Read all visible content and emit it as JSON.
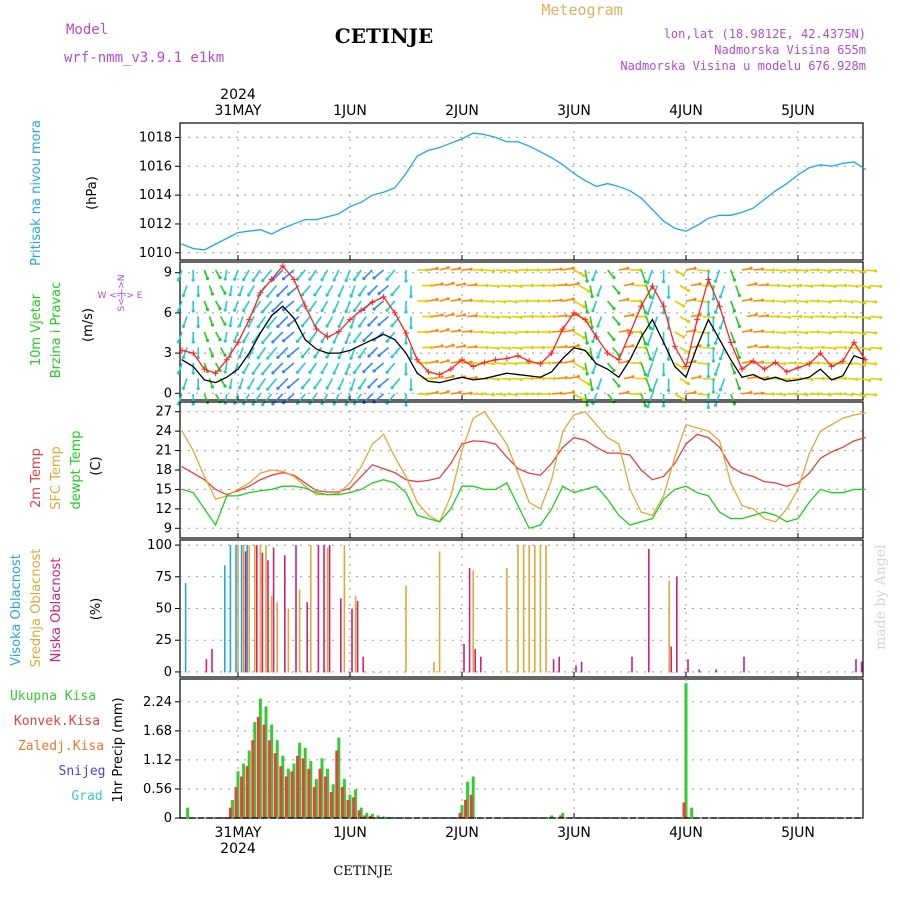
{
  "header": {
    "model_label": "Model",
    "model_name": "wrf-nmm_v3.9.1  e1km",
    "title": "CETINJE",
    "meteogram_label": "Meteogram",
    "lonlat": "lon,lat (18.9812E, 42.4375N)",
    "elevation": "Nadmorska Visina 655m",
    "model_elevation": "Nadmorska Visina u modelu 676.928m",
    "footer_title": "CETINJE",
    "credit": "made by Angel",
    "year_top": "2024",
    "year_bottom": "2024"
  },
  "colors": {
    "pressure": "#22a7e6",
    "temp2m": "#e84040",
    "sfc_temp": "#e0a838",
    "dewpoint": "#22cc22",
    "high_cloud": "#22a7e6",
    "mid_cloud": "#e0a838",
    "low_cloud": "#cc2277",
    "total_precip": "#33cc33",
    "conv_precip": "#e84040",
    "frozen_precip": "#ee7733",
    "snow": "#4444dd",
    "graupel": "#33cccc",
    "wind_speed": "#000000",
    "wind_gust": "#ff2222",
    "labels_purple": "#b04dd0"
  },
  "chart_data": [
    {
      "type": "line",
      "panel": "pressure",
      "ylabel_colored": "Pritisak na nivou mora",
      "unit": "(hPa)",
      "ylim": [
        1009.5,
        1019
      ],
      "yticks": [
        1010,
        1012,
        1014,
        1016,
        1018
      ],
      "x": [
        0,
        0.1,
        0.2,
        0.3,
        0.4,
        0.5,
        0.6,
        0.7,
        0.8,
        0.9,
        1.0,
        1.1,
        1.2,
        1.3,
        1.4,
        1.5,
        1.6,
        1.7,
        1.8,
        1.9,
        2.0,
        2.1,
        2.2,
        2.3,
        2.4,
        2.5,
        2.6,
        2.7,
        2.8,
        2.9,
        3.0,
        3.1,
        3.2,
        3.3,
        3.4,
        3.5,
        3.6,
        3.7,
        3.8,
        3.9,
        4.0,
        4.1,
        4.2,
        4.3,
        4.4,
        4.5,
        4.6,
        4.7,
        4.8,
        4.9,
        5.0,
        5.1,
        5.2,
        5.3,
        5.4,
        5.5,
        5.6,
        5.7,
        5.8,
        5.9,
        6.0,
        6.1
      ],
      "series": [
        {
          "key": "pressure",
          "values": [
            1010.6,
            1010.3,
            1010.2,
            1010.6,
            1011.0,
            1011.4,
            1011.5,
            1011.6,
            1011.3,
            1011.7,
            1012.0,
            1012.3,
            1012.3,
            1012.5,
            1012.7,
            1013.2,
            1013.5,
            1014.0,
            1014.2,
            1014.5,
            1015.5,
            1016.7,
            1017.1,
            1017.3,
            1017.6,
            1017.9,
            1018.3,
            1018.2,
            1018.0,
            1017.7,
            1017.7,
            1017.4,
            1017.0,
            1016.6,
            1016.1,
            1015.5,
            1015.0,
            1014.6,
            1014.8,
            1014.6,
            1014.3,
            1013.8,
            1013.0,
            1012.2,
            1011.7,
            1011.5,
            1011.9,
            1012.4,
            1012.6,
            1012.6,
            1012.8,
            1013.1,
            1013.7,
            1014.3,
            1014.8,
            1015.4,
            1015.9,
            1016.1,
            1016.0,
            1016.2,
            1016.3,
            1015.8
          ]
        }
      ]
    },
    {
      "type": "line",
      "panel": "wind",
      "ylabel_colored": [
        "10m Vjetar",
        "Brzina i Pravac"
      ],
      "unit": "(m/s)",
      "compass": "W <-|-> E",
      "compass_vertical": "S<-|->N",
      "ylim": [
        -0.5,
        9.8
      ],
      "yticks": [
        0,
        3,
        6,
        9
      ],
      "x": [
        0,
        0.1,
        0.2,
        0.3,
        0.4,
        0.5,
        0.6,
        0.7,
        0.8,
        0.9,
        1.0,
        1.1,
        1.2,
        1.3,
        1.4,
        1.5,
        1.6,
        1.7,
        1.8,
        1.9,
        2.0,
        2.1,
        2.2,
        2.3,
        2.4,
        2.5,
        2.6,
        2.7,
        2.8,
        2.9,
        3.0,
        3.1,
        3.2,
        3.3,
        3.4,
        3.5,
        3.6,
        3.7,
        3.8,
        3.9,
        4.0,
        4.1,
        4.2,
        4.3,
        4.4,
        4.5,
        4.6,
        4.7,
        4.8,
        4.9,
        5.0,
        5.1,
        5.2,
        5.3,
        5.4,
        5.5,
        5.6,
        5.7,
        5.8,
        5.9,
        6.0,
        6.1
      ],
      "series": [
        {
          "key": "wind_speed",
          "values": [
            2.5,
            2.0,
            1.0,
            0.8,
            1.2,
            1.8,
            3.0,
            4.5,
            5.8,
            6.5,
            5.6,
            4.0,
            3.3,
            3.0,
            3.0,
            3.2,
            3.6,
            4.0,
            4.4,
            4.0,
            3.0,
            1.5,
            0.9,
            0.8,
            1.0,
            1.2,
            1.0,
            1.1,
            1.3,
            1.5,
            1.4,
            1.3,
            1.2,
            1.6,
            2.6,
            3.4,
            3.2,
            2.2,
            1.8,
            1.2,
            2.5,
            4.2,
            5.5,
            3.8,
            2.0,
            1.2,
            3.5,
            5.5,
            4.0,
            2.5,
            1.2,
            1.4,
            1.0,
            1.2,
            0.9,
            1.0,
            1.2,
            1.8,
            1.0,
            1.3,
            2.8,
            2.5
          ]
        },
        {
          "key": "wind_gust",
          "values": [
            3.2,
            3.0,
            1.8,
            1.5,
            2.5,
            3.8,
            5.5,
            7.5,
            8.5,
            9.5,
            8.5,
            6.5,
            4.8,
            4.2,
            4.6,
            5.5,
            6.2,
            6.8,
            7.2,
            6.0,
            4.5,
            2.5,
            1.6,
            1.4,
            1.8,
            2.5,
            2.0,
            2.3,
            2.5,
            2.6,
            2.8,
            2.4,
            2.2,
            3.0,
            4.8,
            6.0,
            5.5,
            4.2,
            3.0,
            2.5,
            4.5,
            6.5,
            8.0,
            6.5,
            3.5,
            2.0,
            5.5,
            8.5,
            6.5,
            3.8,
            1.8,
            2.4,
            1.8,
            2.3,
            1.6,
            1.9,
            2.2,
            3.0,
            2.0,
            2.4,
            3.8,
            2.5
          ]
        }
      ],
      "wind_direction_deg": [
        200,
        180,
        160,
        150,
        190,
        200,
        210,
        215,
        220,
        225,
        230,
        220,
        215,
        210,
        205,
        200,
        215,
        225,
        230,
        220,
        180,
        90,
        80,
        75,
        80,
        85,
        90,
        95,
        95,
        95,
        90,
        90,
        90,
        85,
        80,
        120,
        170,
        200,
        140,
        80,
        90,
        160,
        200,
        180,
        120,
        80,
        95,
        180,
        200,
        160,
        80,
        85,
        90,
        95,
        90,
        95,
        90,
        95,
        90,
        95,
        100,
        95
      ]
    },
    {
      "type": "line",
      "panel": "temperature",
      "ylabel_colored": [
        "2m Temp",
        "SFC Temp",
        "dewpt Temp"
      ],
      "unit": "(C)",
      "ylim": [
        7.5,
        28.5
      ],
      "yticks": [
        9,
        12,
        15,
        18,
        21,
        24,
        27
      ],
      "x": [
        0,
        0.1,
        0.2,
        0.3,
        0.4,
        0.5,
        0.6,
        0.7,
        0.8,
        0.9,
        1.0,
        1.1,
        1.2,
        1.3,
        1.4,
        1.5,
        1.6,
        1.7,
        1.8,
        1.9,
        2.0,
        2.1,
        2.2,
        2.3,
        2.4,
        2.5,
        2.6,
        2.7,
        2.8,
        2.9,
        3.0,
        3.1,
        3.2,
        3.3,
        3.4,
        3.5,
        3.6,
        3.7,
        3.8,
        3.9,
        4.0,
        4.1,
        4.2,
        4.3,
        4.4,
        4.5,
        4.6,
        4.7,
        4.8,
        4.9,
        5.0,
        5.1,
        5.2,
        5.3,
        5.4,
        5.5,
        5.6,
        5.7,
        5.8,
        5.9,
        6.0,
        6.1
      ],
      "series": [
        {
          "key": "temp2m",
          "values": [
            18.5,
            17.5,
            16.5,
            15.0,
            14.2,
            14.8,
            15.5,
            16.5,
            17.2,
            17.6,
            17.2,
            16.0,
            14.8,
            14.6,
            14.6,
            15.2,
            17.0,
            18.8,
            18.2,
            17.6,
            16.5,
            16.2,
            16.4,
            16.8,
            19.0,
            22.0,
            22.5,
            22.4,
            22.0,
            20.0,
            18.2,
            17.5,
            17.2,
            19.0,
            21.5,
            23.0,
            22.6,
            21.5,
            20.6,
            20.6,
            20.3,
            18.0,
            16.5,
            17.0,
            19.0,
            22.0,
            23.5,
            23.0,
            21.5,
            18.5,
            17.5,
            17.0,
            16.2,
            16.0,
            15.5,
            16.0,
            17.5,
            19.8,
            20.8,
            21.5,
            22.5,
            23.0
          ]
        },
        {
          "key": "sfc_temp",
          "values": [
            24.0,
            21.0,
            17.0,
            13.5,
            14.0,
            15.0,
            16.0,
            17.5,
            18.0,
            17.8,
            17.0,
            15.5,
            14.2,
            14.2,
            14.4,
            16.0,
            18.5,
            22.0,
            23.5,
            20.0,
            17.0,
            13.0,
            11.0,
            10.0,
            14.0,
            21.0,
            26.0,
            27.0,
            24.5,
            22.0,
            17.5,
            13.0,
            12.0,
            16.5,
            24.0,
            26.5,
            27.0,
            25.0,
            23.0,
            22.0,
            15.0,
            11.5,
            11.0,
            14.0,
            20.0,
            25.0,
            24.5,
            24.0,
            22.5,
            16.0,
            12.5,
            12.0,
            10.5,
            10.0,
            12.0,
            15.0,
            20.5,
            24.0,
            25.0,
            26.0,
            26.5,
            26.8
          ]
        },
        {
          "key": "dewpoint",
          "values": [
            15.0,
            14.5,
            12.0,
            9.5,
            14.0,
            14.0,
            14.5,
            14.8,
            15.0,
            15.5,
            15.5,
            15.2,
            14.5,
            14.2,
            14.2,
            14.5,
            15.0,
            16.0,
            16.5,
            16.0,
            14.5,
            11.0,
            10.5,
            10.0,
            12.0,
            15.5,
            15.5,
            15.0,
            15.0,
            16.0,
            12.5,
            9.0,
            9.5,
            12.0,
            15.5,
            14.5,
            15.0,
            15.5,
            13.5,
            11.0,
            9.5,
            10.0,
            10.5,
            13.5,
            15.0,
            15.5,
            14.5,
            14.0,
            11.5,
            10.5,
            10.5,
            11.0,
            11.5,
            11.0,
            10.0,
            10.5,
            13.0,
            15.0,
            14.5,
            14.5,
            15.0,
            15.0
          ]
        }
      ]
    },
    {
      "type": "bar",
      "panel": "cloud",
      "ylabel_colored": [
        "Visoka Oblacnost",
        "Srednja Oblacnost",
        "Niska Oblacnost"
      ],
      "unit": "(%)",
      "ylim": [
        -4,
        104
      ],
      "yticks": [
        0,
        25,
        50,
        75,
        100
      ],
      "series": [
        {
          "key": "high_cloud",
          "x": [
            0.05,
            0.4,
            0.45,
            0.5,
            0.55,
            0.6,
            1.0,
            2.0,
            3.0,
            3.5,
            4.0,
            4.4,
            4.5,
            5.0,
            5.5,
            6.0
          ],
          "values": [
            70,
            84,
            100,
            100,
            100,
            100,
            0,
            0,
            0,
            0,
            0,
            0,
            0,
            0,
            0,
            0
          ]
        },
        {
          "key": "mid_cloud",
          "x": [
            0.5,
            0.55,
            0.6,
            0.65,
            0.7,
            0.75,
            0.8,
            0.85,
            0.95,
            1.05,
            1.15,
            1.3,
            1.45,
            1.55,
            1.65,
            2.0,
            2.25,
            2.3,
            2.55,
            2.6,
            2.85,
            2.9,
            2.95,
            3.0,
            3.05,
            3.1,
            3.15,
            3.2,
            3.25,
            3.3,
            3.45,
            3.55,
            3.6,
            4.35,
            4.4
          ],
          "values": [
            100,
            100,
            100,
            100,
            100,
            100,
            60,
            55,
            50,
            65,
            100,
            98,
            100,
            60,
            0,
            68,
            8,
            95,
            0,
            80,
            0,
            82,
            0,
            100,
            100,
            100,
            100,
            100,
            100,
            0,
            0,
            0,
            0,
            72,
            0
          ]
        },
        {
          "key": "low_cloud",
          "x": [
            0.2,
            0.25,
            0.55,
            0.65,
            0.7,
            0.75,
            0.8,
            0.9,
            1.0,
            1.1,
            1.2,
            1.25,
            1.3,
            1.4,
            1.5,
            1.55,
            1.6,
            1.7,
            1.75,
            2.5,
            2.55,
            2.6,
            2.65,
            3.3,
            3.35,
            3.5,
            3.55,
            4.0,
            4.15,
            4.35,
            4.4,
            4.5,
            4.6,
            4.75,
            5.0,
            5.25,
            5.5,
            5.75,
            6.0,
            6.05
          ],
          "values": [
            10,
            18,
            95,
            100,
            94,
            88,
            98,
            92,
            100,
            55,
            100,
            100,
            100,
            58,
            50,
            56,
            12,
            0,
            0,
            22,
            82,
            18,
            12,
            10,
            12,
            5,
            8,
            12,
            97,
            20,
            75,
            10,
            2,
            2,
            12,
            0,
            0,
            0,
            10,
            8
          ]
        }
      ]
    },
    {
      "type": "bar",
      "panel": "precipitation",
      "ylabel_colored": [
        "Ukupna Kisa",
        "Konvek.Kisa",
        "Zaledj.Kisa",
        "Snijeg",
        "Grad"
      ],
      "unit": "1hr Precip (mm)",
      "ylim": [
        0,
        2.68
      ],
      "yticks": [
        0,
        0.56,
        1.12,
        1.68,
        2.24
      ],
      "x": [
        0.05,
        0.45,
        0.5,
        0.55,
        0.6,
        0.65,
        0.7,
        0.75,
        0.8,
        0.85,
        0.9,
        0.95,
        1.0,
        1.05,
        1.1,
        1.15,
        1.2,
        1.25,
        1.3,
        1.35,
        1.4,
        1.45,
        1.5,
        1.55,
        1.6,
        1.65,
        1.7,
        1.75,
        1.8,
        1.85,
        2.5,
        2.55,
        2.6,
        3.3,
        3.4,
        4.5,
        4.55
      ],
      "series": [
        {
          "key": "total_precip",
          "values": [
            0.2,
            0.35,
            0.9,
            1.05,
            1.3,
            1.85,
            2.3,
            2.15,
            1.8,
            1.5,
            1.2,
            0.95,
            1.05,
            1.45,
            1.35,
            1.1,
            0.75,
            1.15,
            0.95,
            0.65,
            1.55,
            0.75,
            0.45,
            0.55,
            0.2,
            0.1,
            0.08,
            0.05,
            0.03,
            0.02,
            0.25,
            0.7,
            0.8,
            0.05,
            0.1,
            2.6,
            0.2
          ]
        },
        {
          "key": "conv_precip",
          "values": [
            0,
            0.2,
            0.6,
            0.8,
            1.0,
            1.5,
            1.95,
            1.8,
            1.5,
            1.25,
            1.0,
            0.8,
            0.9,
            1.2,
            1.15,
            0.95,
            0.6,
            0.95,
            0.8,
            0.5,
            1.3,
            0.6,
            0.35,
            0.4,
            0.15,
            0.05,
            0.04,
            0.02,
            0.01,
            0,
            0.1,
            0.35,
            0.45,
            0,
            0.05,
            0.3,
            0
          ]
        }
      ]
    }
  ],
  "x_axis": {
    "top_labels": [
      "31MAY",
      "1JUN",
      "2JUN",
      "3JUN",
      "4JUN",
      "5JUN"
    ],
    "bottom_labels": [
      "31MAY",
      "1JUN",
      "2JUN",
      "3JUN",
      "4JUN",
      "5JUN"
    ]
  }
}
